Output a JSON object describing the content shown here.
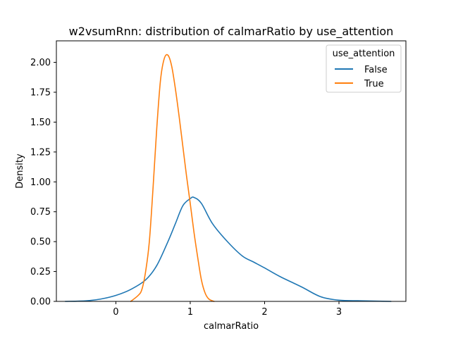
{
  "chart_data": {
    "type": "line",
    "title": "w2vsumRnn: distribution of calmarRatio by use_attention",
    "xlabel": "calmarRatio",
    "ylabel": "Density",
    "xlim": [
      -0.8,
      3.9
    ],
    "ylim": [
      0,
      2.18
    ],
    "xticks": [
      0,
      1,
      2,
      3
    ],
    "xtick_labels": [
      "0",
      "1",
      "2",
      "3"
    ],
    "yticks": [
      0,
      0.25,
      0.5,
      0.75,
      1.0,
      1.25,
      1.5,
      1.75,
      2.0
    ],
    "ytick_labels": [
      "0.00",
      "0.25",
      "0.50",
      "0.75",
      "1.00",
      "1.25",
      "1.50",
      "1.75",
      "2.00"
    ],
    "grid": false,
    "legend": {
      "title": "use_attention",
      "placement": "top-right"
    },
    "series": [
      {
        "name": "False",
        "color": "#1f77b4",
        "x": [
          -0.68,
          -0.4,
          -0.2,
          0.0,
          0.2,
          0.4,
          0.55,
          0.7,
          0.8,
          0.9,
          1.0,
          1.05,
          1.15,
          1.3,
          1.5,
          1.7,
          1.85,
          2.0,
          2.2,
          2.5,
          2.75,
          3.0,
          3.3,
          3.7
        ],
        "y": [
          0.0,
          0.005,
          0.02,
          0.05,
          0.1,
          0.18,
          0.3,
          0.5,
          0.65,
          0.8,
          0.86,
          0.87,
          0.82,
          0.65,
          0.5,
          0.38,
          0.33,
          0.28,
          0.21,
          0.12,
          0.04,
          0.01,
          0.005,
          0.0
        ]
      },
      {
        "name": "True",
        "color": "#ff7f0e",
        "x": [
          0.2,
          0.3,
          0.35,
          0.4,
          0.45,
          0.5,
          0.55,
          0.6,
          0.65,
          0.7,
          0.75,
          0.8,
          0.85,
          0.9,
          0.95,
          1.0,
          1.05,
          1.1,
          1.15,
          1.2,
          1.25,
          1.32
        ],
        "y": [
          0.0,
          0.05,
          0.1,
          0.25,
          0.5,
          0.95,
          1.45,
          1.85,
          2.03,
          2.06,
          1.97,
          1.78,
          1.55,
          1.3,
          1.05,
          0.82,
          0.58,
          0.37,
          0.18,
          0.07,
          0.02,
          0.0
        ]
      }
    ]
  }
}
